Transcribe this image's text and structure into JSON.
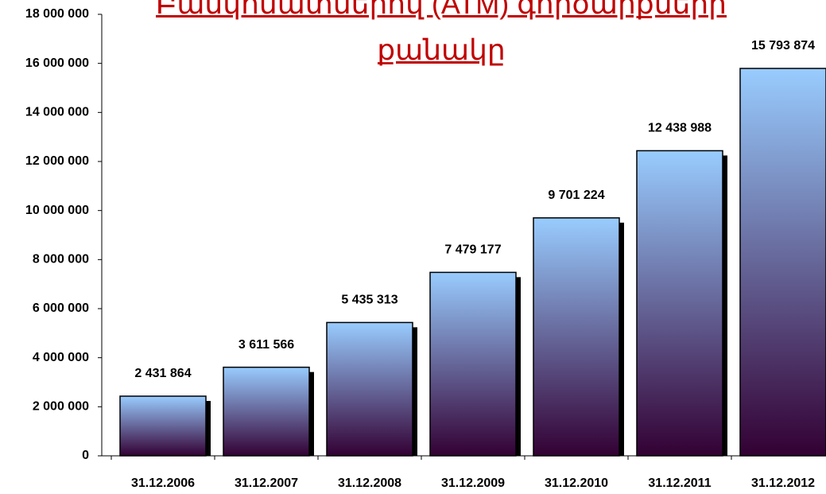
{
  "chart_data": {
    "type": "bar",
    "title": "Բանկոմատներով (ATM) գործարքների քանակը",
    "categories": [
      "31.12.2006",
      "31.12.2007",
      "31.12.2008",
      "31.12.2009",
      "31.12.2010",
      "31.12.2011",
      "31.12.2012"
    ],
    "values": [
      2431864,
      3611566,
      5435313,
      7479177,
      9701224,
      12438988,
      15793874
    ],
    "value_labels": [
      "2 431 864",
      "3 611 566",
      "5 435 313",
      "7 479 177",
      "9 701 224",
      "12 438 988",
      "15 793 874"
    ],
    "color_top": "#99ccff",
    "color_bottom": "#330033",
    "ylim": [
      0,
      18000000
    ],
    "yticks": [
      0,
      {
        "value": 2000000,
        "label": "2 000 000"
      },
      {
        "value": 4000000,
        "label": "4 000 000"
      },
      {
        "value": 6000000,
        "label": "6 000 000"
      },
      {
        "value": 8000000,
        "label": "8 000 000"
      },
      {
        "value": 10000000,
        "label": "10 000 000"
      },
      {
        "value": 12000000,
        "label": "12 000 000"
      },
      {
        "value": 14000000,
        "label": "14 000 000"
      },
      {
        "value": 16000000,
        "label": "16 000 000"
      },
      {
        "value": 18000000,
        "label": "18 000 000"
      }
    ],
    "grid": false
  }
}
